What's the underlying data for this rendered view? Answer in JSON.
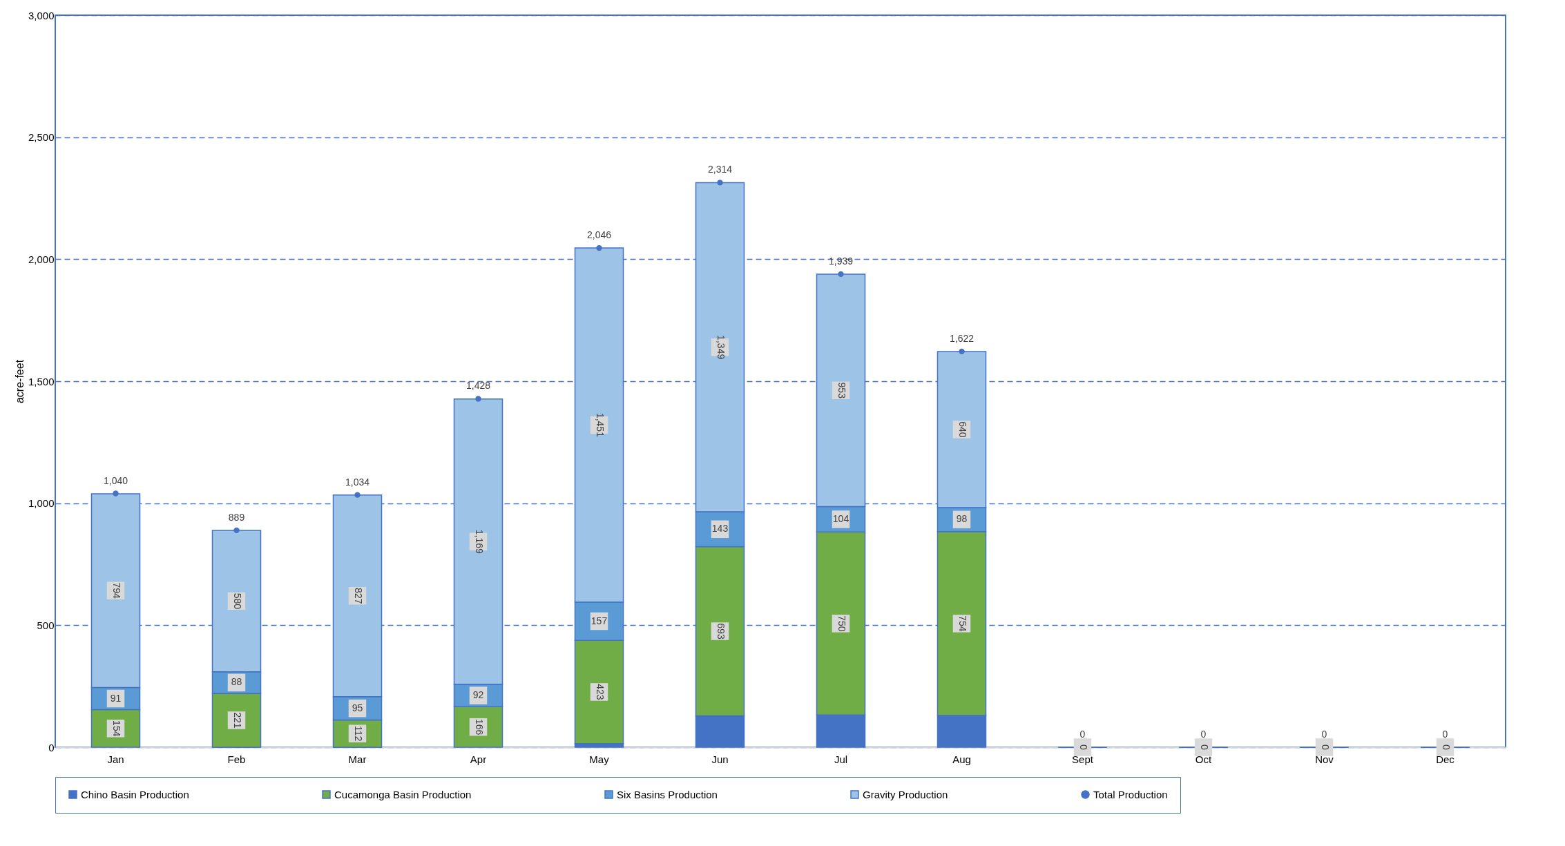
{
  "chart_data": {
    "type": "bar",
    "stacked": true,
    "ylabel": "acre-feet",
    "categories": [
      "Jan",
      "Feb",
      "Mar",
      "Apr",
      "May",
      "Jun",
      "Jul",
      "Aug",
      "Sept",
      "Oct",
      "Nov",
      "Dec"
    ],
    "ylim": [
      0,
      3000
    ],
    "yticks": [
      {
        "value": 0,
        "label": "0"
      },
      {
        "value": 500,
        "label": "500"
      },
      {
        "value": 1000,
        "label": "1,000"
      },
      {
        "value": 1500,
        "label": "1,500"
      },
      {
        "value": 2000,
        "label": "2,000"
      },
      {
        "value": 2500,
        "label": "2,500"
      },
      {
        "value": 3000,
        "label": "3,000"
      }
    ],
    "grid": "y",
    "legend": "bottom",
    "series": [
      {
        "name": "Chino Basin Production",
        "color": "#4472c4",
        "values": [
          null,
          0,
          0,
          null,
          15,
          129,
          132,
          130,
          0,
          0,
          0,
          0
        ]
      },
      {
        "name": "Cucamonga Basin Production",
        "color": "#70ad47",
        "values": [
          154,
          221,
          112,
          166,
          423,
          693,
          750,
          754,
          0,
          0,
          0,
          0
        ],
        "value_labels": [
          "154",
          "221",
          "112",
          "166",
          "423",
          "693",
          "750",
          "754",
          null,
          null,
          null,
          null
        ]
      },
      {
        "name": "Six Basins Production",
        "color": "#5b9bd5",
        "values": [
          91,
          88,
          95,
          92,
          157,
          143,
          104,
          98,
          0,
          0,
          0,
          0
        ],
        "value_labels": [
          "91",
          "88",
          "95",
          "92",
          "157",
          "143",
          "104",
          "98",
          null,
          null,
          null,
          null
        ]
      },
      {
        "name": "Gravity Production",
        "color": "#9dc3e6",
        "values": [
          794,
          580,
          827,
          1169,
          1451,
          1349,
          953,
          640,
          0,
          0,
          0,
          0
        ],
        "value_labels": [
          "794",
          "580",
          "827",
          "1,169",
          "1,451",
          "1,349",
          "953",
          "640",
          "0",
          "0",
          "0",
          "0"
        ]
      },
      {
        "name": "Total Production",
        "type": "scatter",
        "color": "#4472c4",
        "marker": "circle",
        "values": [
          1040,
          889,
          1034,
          1428,
          2046,
          2314,
          1939,
          1622,
          0,
          0,
          0,
          0
        ],
        "value_labels": [
          "1,040",
          "889",
          "1,034",
          "1,428",
          "2,046",
          "2,314",
          "1,939",
          "1,622",
          "0",
          "0",
          "0",
          "0"
        ]
      }
    ]
  }
}
